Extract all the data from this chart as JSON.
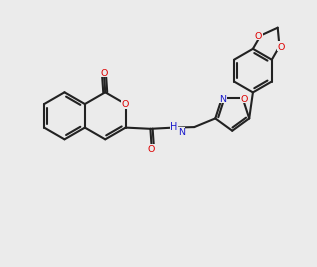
{
  "bg_color": "#ebebeb",
  "bond_color": "#222222",
  "O_color": "#dd0000",
  "N_color": "#1a1acc",
  "lw": 1.5,
  "fs": 6.8,
  "xlim": [
    -0.5,
    11.5
  ],
  "ylim": [
    0.5,
    10.5
  ]
}
